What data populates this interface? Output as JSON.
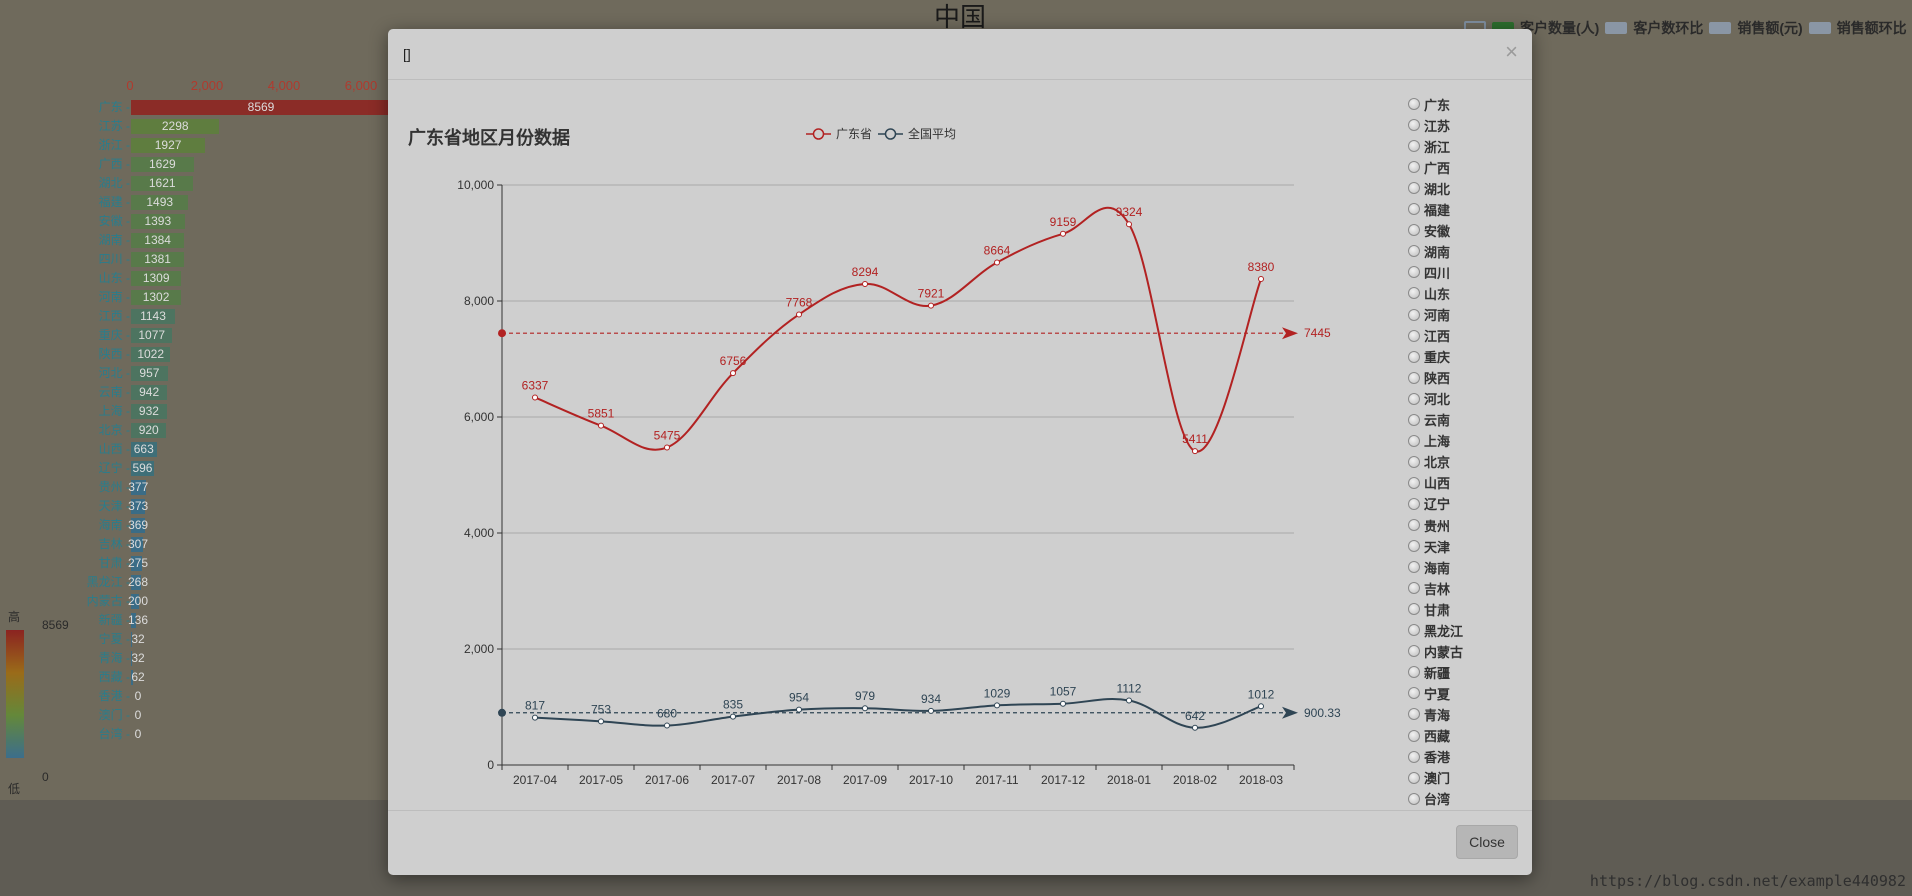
{
  "background": {
    "title": "中国",
    "legend": [
      {
        "label": "客户数量(人)",
        "color": "#2d6e2e"
      },
      {
        "label": "客户数环比",
        "color": "#8a96a5"
      },
      {
        "label": "销售额(元)",
        "color": "#8a96a5"
      },
      {
        "label": "销售额环比",
        "color": "#8a96a5"
      }
    ],
    "axis_ticks": [
      "0",
      "2,000",
      "4,000",
      "6,000"
    ],
    "axis_max": 6000,
    "provinces": [
      {
        "name": "广东",
        "value": 8569
      },
      {
        "name": "江苏",
        "value": 2298
      },
      {
        "name": "浙江",
        "value": 1927
      },
      {
        "name": "广西",
        "value": 1629
      },
      {
        "name": "湖北",
        "value": 1621
      },
      {
        "name": "福建",
        "value": 1493
      },
      {
        "name": "安徽",
        "value": 1393
      },
      {
        "name": "湖南",
        "value": 1384
      },
      {
        "name": "四川",
        "value": 1381
      },
      {
        "name": "山东",
        "value": 1309
      },
      {
        "name": "河南",
        "value": 1302
      },
      {
        "name": "江西",
        "value": 1143
      },
      {
        "name": "重庆",
        "value": 1077
      },
      {
        "name": "陕西",
        "value": 1022
      },
      {
        "name": "河北",
        "value": 957
      },
      {
        "name": "云南",
        "value": 942
      },
      {
        "name": "上海",
        "value": 932
      },
      {
        "name": "北京",
        "value": 920
      },
      {
        "name": "山西",
        "value": 663
      },
      {
        "name": "辽宁",
        "value": 596
      },
      {
        "name": "贵州",
        "value": 377
      },
      {
        "name": "天津",
        "value": 373
      },
      {
        "name": "海南",
        "value": 369
      },
      {
        "name": "吉林",
        "value": 307
      },
      {
        "name": "甘肃",
        "value": 275
      },
      {
        "name": "黑龙江",
        "value": 268
      },
      {
        "name": "内蒙古",
        "value": 200
      },
      {
        "name": "新疆",
        "value": 136
      },
      {
        "name": "宁夏",
        "value": 32
      },
      {
        "name": "青海",
        "value": 32
      },
      {
        "name": "西藏",
        "value": 62
      },
      {
        "name": "香港",
        "value": 0
      },
      {
        "name": "澳门",
        "value": 0
      },
      {
        "name": "台湾",
        "value": 0
      }
    ],
    "visual_map": {
      "high_label": "高",
      "low_label": "低",
      "max": "8569",
      "min": "0"
    },
    "watermark": "https://blog.csdn.net/example440982"
  },
  "modal": {
    "title": "[]",
    "close_symbol": "×",
    "close_button": "Close",
    "radio_options": [
      "广东",
      "江苏",
      "浙江",
      "广西",
      "湖北",
      "福建",
      "安徽",
      "湖南",
      "四川",
      "山东",
      "河南",
      "江西",
      "重庆",
      "陕西",
      "河北",
      "云南",
      "上海",
      "北京",
      "山西",
      "辽宁",
      "贵州",
      "天津",
      "海南",
      "吉林",
      "甘肃",
      "黑龙江",
      "内蒙古",
      "新疆",
      "宁夏",
      "青海",
      "西藏",
      "香港",
      "澳门",
      "台湾"
    ]
  },
  "chart_data": {
    "type": "line",
    "title": "广东省地区月份数据",
    "x": [
      "2017-04",
      "2017-05",
      "2017-06",
      "2017-07",
      "2017-08",
      "2017-09",
      "2017-10",
      "2017-11",
      "2017-12",
      "2018-01",
      "2018-02",
      "2018-03"
    ],
    "ylim": [
      0,
      10000
    ],
    "yticks": [
      0,
      2000,
      4000,
      6000,
      8000,
      10000
    ],
    "ytick_labels": [
      "0",
      "2,000",
      "4,000",
      "6,000",
      "8,000",
      "10,000"
    ],
    "grid": true,
    "legend_position": "top-center",
    "series": [
      {
        "name": "广东省",
        "color": "#b22222",
        "values": [
          6337,
          5851,
          5475,
          6756,
          7768,
          8294,
          7921,
          8664,
          9159,
          9324,
          5411,
          8380
        ],
        "mean": 7445,
        "mean_label": "7445"
      },
      {
        "name": "全国平均",
        "color": "#2f4554",
        "values": [
          817,
          753,
          680,
          835,
          954,
          979,
          934,
          1029,
          1057,
          1112,
          642,
          1012
        ],
        "mean": 900.33,
        "mean_label": "900.33"
      }
    ]
  }
}
